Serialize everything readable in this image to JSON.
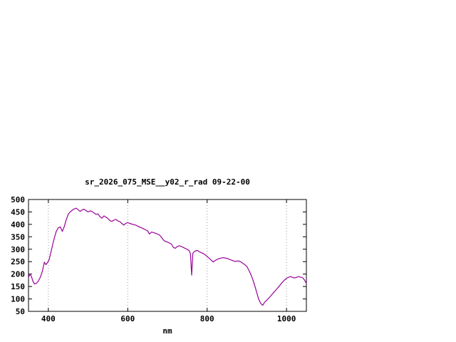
{
  "chart_data": {
    "type": "line",
    "title": "sr_2026_075_MSE__y02_r_rad 09-22-00",
    "xlabel": "nm",
    "ylabel": "",
    "xlim": [
      350,
      1050
    ],
    "ylim": [
      50,
      500
    ],
    "x_ticks": [
      400,
      600,
      800,
      1000
    ],
    "y_ticks": [
      50,
      100,
      150,
      200,
      250,
      300,
      350,
      400,
      450,
      500
    ],
    "grid": "vertical-dotted",
    "legend": "none",
    "line_color": "#990099",
    "border_color": "#000000",
    "grid_color": "#999999",
    "x": [
      350,
      353,
      357,
      361,
      365,
      370,
      375,
      380,
      385,
      390,
      394,
      398,
      402,
      406,
      410,
      415,
      420,
      425,
      430,
      435,
      440,
      445,
      450,
      455,
      460,
      465,
      470,
      475,
      480,
      485,
      490,
      495,
      500,
      505,
      510,
      515,
      520,
      525,
      530,
      535,
      540,
      545,
      550,
      555,
      560,
      565,
      570,
      575,
      580,
      585,
      590,
      595,
      600,
      605,
      610,
      615,
      620,
      625,
      630,
      635,
      640,
      645,
      650,
      655,
      660,
      665,
      670,
      675,
      680,
      685,
      690,
      695,
      700,
      705,
      710,
      715,
      720,
      725,
      730,
      735,
      740,
      745,
      750,
      755,
      758,
      761,
      764,
      768,
      772,
      776,
      780,
      785,
      790,
      795,
      800,
      805,
      810,
      815,
      820,
      825,
      830,
      835,
      840,
      845,
      850,
      855,
      860,
      865,
      870,
      875,
      880,
      885,
      890,
      895,
      900,
      905,
      910,
      915,
      920,
      925,
      930,
      935,
      940,
      945,
      950,
      955,
      960,
      965,
      970,
      975,
      980,
      985,
      990,
      995,
      1000,
      1005,
      1010,
      1015,
      1020,
      1025,
      1030,
      1035,
      1040,
      1045,
      1050
    ],
    "y": [
      185,
      200,
      192,
      172,
      160,
      163,
      172,
      188,
      212,
      248,
      238,
      246,
      258,
      285,
      312,
      345,
      372,
      386,
      390,
      372,
      390,
      418,
      440,
      450,
      457,
      462,
      465,
      459,
      452,
      458,
      461,
      455,
      450,
      454,
      452,
      446,
      440,
      442,
      431,
      425,
      434,
      429,
      424,
      415,
      412,
      417,
      420,
      414,
      411,
      404,
      397,
      404,
      407,
      404,
      401,
      399,
      397,
      393,
      389,
      386,
      382,
      378,
      374,
      361,
      369,
      367,
      364,
      361,
      357,
      348,
      337,
      331,
      329,
      325,
      321,
      307,
      304,
      311,
      314,
      311,
      307,
      303,
      299,
      294,
      281,
      196,
      284,
      291,
      294,
      295,
      290,
      286,
      283,
      278,
      271,
      264,
      257,
      249,
      254,
      259,
      262,
      264,
      266,
      265,
      263,
      260,
      257,
      254,
      251,
      252,
      253,
      249,
      243,
      238,
      231,
      216,
      199,
      178,
      153,
      125,
      99,
      82,
      74,
      87,
      94,
      103,
      112,
      121,
      130,
      139,
      148,
      158,
      168,
      176,
      183,
      187,
      190,
      187,
      184,
      187,
      190,
      188,
      186,
      177,
      162
    ]
  }
}
